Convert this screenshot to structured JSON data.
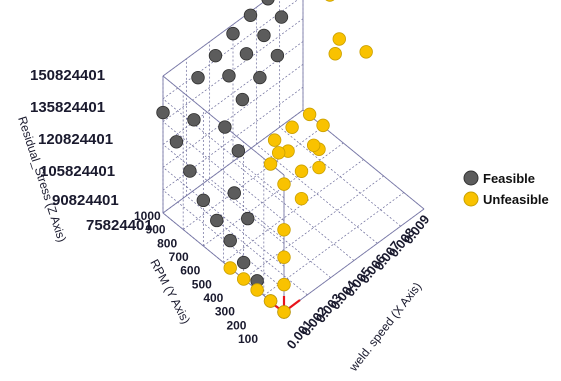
{
  "chart_data": {
    "type": "scatter",
    "projection": "3d",
    "zlabel": "Residual_Stress (Z Axis)",
    "ylabel": "RPM (Y Axis)",
    "xlabel": "weld. speed (X Axis)",
    "z_ticks": [
      "150824401",
      "135824401",
      "120824401",
      "105824401",
      "90824401",
      "75824401"
    ],
    "y_ticks": [
      "1000",
      "900",
      "800",
      "700",
      "600",
      "500",
      "400",
      "300",
      "200",
      "100"
    ],
    "x_ticks": [
      "0.009",
      "0.008",
      "0.007",
      "0.006",
      "0.005",
      "0.004",
      "0.003",
      "0.002",
      "0.001"
    ],
    "grid": true,
    "legend_position": "right",
    "colors": {
      "feasible": "#5c5c5c",
      "unfeasible": "#f9c200",
      "axis_lines": "#e8141c",
      "grid": "#6b6b9a"
    },
    "series": [
      {
        "name": "Feasible",
        "color": "#5c5c5c",
        "points": [
          {
            "x": 0.001,
            "y": 100,
            "z": 75824401
          },
          {
            "x": 0.001,
            "y": 200,
            "z": 75824401
          },
          {
            "x": 0.001,
            "y": 300,
            "z": 80824401
          },
          {
            "x": 0.001,
            "y": 400,
            "z": 84824401
          },
          {
            "x": 0.001,
            "y": 500,
            "z": 90824401
          },
          {
            "x": 0.001,
            "y": 600,
            "z": 95824401
          },
          {
            "x": 0.001,
            "y": 700,
            "z": 100824401
          },
          {
            "x": 0.001,
            "y": 800,
            "z": 110824401
          },
          {
            "x": 0.001,
            "y": 900,
            "z": 120824401
          },
          {
            "x": 0.001,
            "y": 1000,
            "z": 130824401
          },
          {
            "x": 0.002,
            "y": 500,
            "z": 95824401
          },
          {
            "x": 0.002,
            "y": 900,
            "z": 125824401
          },
          {
            "x": 0.003,
            "y": 1000,
            "z": 135824401
          },
          {
            "x": 0.003,
            "y": 800,
            "z": 120824401
          },
          {
            "x": 0.004,
            "y": 1000,
            "z": 140824401
          },
          {
            "x": 0.004,
            "y": 900,
            "z": 135824401
          },
          {
            "x": 0.005,
            "y": 1000,
            "z": 145824401
          },
          {
            "x": 0.005,
            "y": 900,
            "z": 140824401
          },
          {
            "x": 0.006,
            "y": 1000,
            "z": 148824401
          },
          {
            "x": 0.006,
            "y": 900,
            "z": 143824401
          },
          {
            "x": 0.007,
            "y": 1000,
            "z": 150824401
          },
          {
            "x": 0.007,
            "y": 900,
            "z": 146824401
          },
          {
            "x": 0.008,
            "y": 1000,
            "z": 150824401
          },
          {
            "x": 0.006,
            "y": 800,
            "z": 138824401
          },
          {
            "x": 0.005,
            "y": 800,
            "z": 133824401
          },
          {
            "x": 0.003,
            "y": 700,
            "z": 113824401
          },
          {
            "x": 0.002,
            "y": 600,
            "z": 103824401
          },
          {
            "x": 0.004,
            "y": 800,
            "z": 128824401
          }
        ]
      },
      {
        "name": "Unfeasible",
        "color": "#f9c200",
        "points": [
          {
            "x": 0.001,
            "y": 100,
            "z": 105824401
          },
          {
            "x": 0.001,
            "y": 100,
            "z": 120824401
          },
          {
            "x": 0.001,
            "y": 100,
            "z": 145824401
          },
          {
            "x": 0.001,
            "y": 200,
            "z": 150824401
          },
          {
            "x": 0.001,
            "y": 100,
            "z": 90824401
          },
          {
            "x": 0.002,
            "y": 100,
            "z": 145824401
          },
          {
            "x": 0.002,
            "y": 100,
            "z": 130824401
          },
          {
            "x": 0.002,
            "y": 200,
            "z": 150824401
          },
          {
            "x": 0.003,
            "y": 100,
            "z": 150824401
          },
          {
            "x": 0.003,
            "y": 100,
            "z": 140824401
          },
          {
            "x": 0.002,
            "y": 300,
            "z": 150824401
          },
          {
            "x": 0.003,
            "y": 300,
            "z": 150824401
          },
          {
            "x": 0.004,
            "y": 300,
            "z": 150824401
          },
          {
            "x": 0.004,
            "y": 200,
            "z": 150824401
          },
          {
            "x": 0.003,
            "y": 400,
            "z": 130824401
          },
          {
            "x": 0.001,
            "y": 100,
            "z": 75824401
          },
          {
            "x": 0.001,
            "y": 200,
            "z": 75824401
          },
          {
            "x": 0.001,
            "y": 300,
            "z": 75824401
          },
          {
            "x": 0.001,
            "y": 400,
            "z": 75824401
          },
          {
            "x": 0.001,
            "y": 500,
            "z": 75824401
          },
          {
            "x": 0.009,
            "y": 800,
            "z": 150824401
          },
          {
            "x": 0.008,
            "y": 600,
            "z": 145824401
          },
          {
            "x": 0.007,
            "y": 500,
            "z": 150824401
          },
          {
            "x": 0.008,
            "y": 400,
            "z": 150824401
          },
          {
            "x": 0.005,
            "y": 400,
            "z": 120824401
          }
        ]
      }
    ],
    "legend": [
      {
        "label": "Feasible",
        "color": "#5c5c5c"
      },
      {
        "label": "Unfeasible",
        "color": "#f9c200"
      }
    ]
  }
}
